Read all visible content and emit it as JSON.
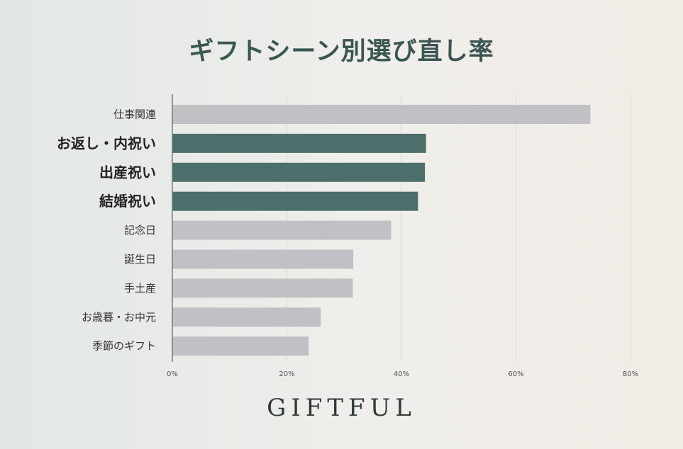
{
  "chart_data": {
    "type": "bar",
    "orientation": "horizontal",
    "title": "ギフトシーン別選び直し率",
    "categories": [
      "仕事関連",
      "お返し・内祝い",
      "出産祝い",
      "結婚祝い",
      "記念日",
      "誕生日",
      "手土産",
      "お歳暮・お中元",
      "季節のギフト"
    ],
    "values": [
      73,
      44.3,
      44.1,
      42.9,
      38.2,
      31.6,
      31.5,
      25.9,
      23.8
    ],
    "highlighted": [
      false,
      true,
      true,
      true,
      false,
      false,
      false,
      false,
      false
    ],
    "xlim": [
      0,
      80
    ],
    "xticks": [
      0,
      20,
      40,
      60,
      80
    ],
    "tick_suffix": "%",
    "grid": true,
    "colors": {
      "default": "#c1c1c5",
      "highlight": "#4c6f6b"
    }
  },
  "brand": {
    "logo_text": "GIFTFUL"
  }
}
